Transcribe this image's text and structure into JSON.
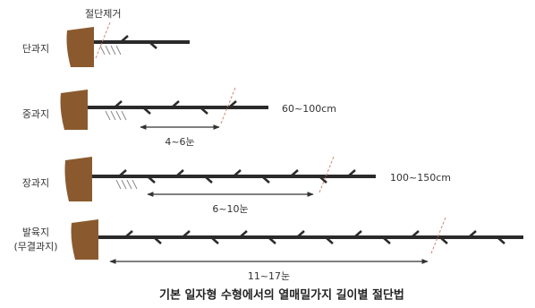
{
  "cut_label": "절단제거",
  "rows": [
    {
      "label": "단과지"
    },
    {
      "label": "중과지",
      "length": "60~100cm",
      "buds": "4~6눈"
    },
    {
      "label": "장과지",
      "length": "100~150cm",
      "buds": "6~10눈"
    },
    {
      "label": "발육지",
      "sublabel": "(무결과지)",
      "buds": "11~17눈"
    }
  ],
  "caption": "기본 일자형 수형에서의 열매밀가지 길이별 절단법"
}
